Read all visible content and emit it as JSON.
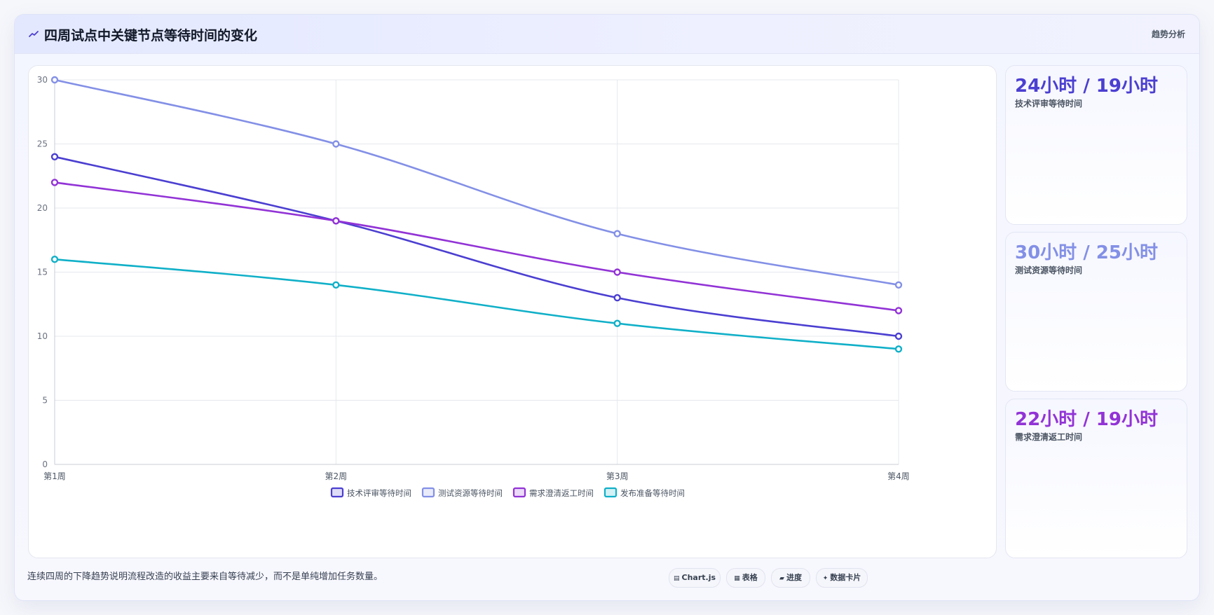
{
  "header": {
    "title": "四周试点中关键节点等待时间的变化",
    "badge": "趋势分析"
  },
  "colors": {
    "series": [
      "#4b3fd1",
      "#8390e6",
      "#9233d6",
      "#10b0c8"
    ]
  },
  "chart_data": {
    "type": "line",
    "x": [
      "第1周",
      "第2周",
      "第3周",
      "第4周"
    ],
    "ylim": [
      0,
      30
    ],
    "yticks": [
      0,
      5,
      10,
      15,
      20,
      25,
      30
    ],
    "grid": true,
    "legend_position": "bottom",
    "series": [
      {
        "name": "技术评审等待时间",
        "values": [
          24,
          19,
          13,
          10
        ]
      },
      {
        "name": "测试资源等待时间",
        "values": [
          30,
          25,
          18,
          14
        ]
      },
      {
        "name": "需求澄清返工时间",
        "values": [
          22,
          19,
          15,
          12
        ]
      },
      {
        "name": "发布准备等待时间",
        "values": [
          16,
          14,
          11,
          9
        ]
      }
    ]
  },
  "stats": [
    {
      "value": "24小时 / 19小时",
      "label": "技术评审等待时间",
      "color": "#4b3fd1"
    },
    {
      "value": "30小时 / 25小时",
      "label": "测试资源等待时间",
      "color": "#8390e6"
    },
    {
      "value": "22小时 / 19小时",
      "label": "需求澄清返工时间",
      "color": "#9233d6"
    }
  ],
  "footer": {
    "note": "连续四周的下降趋势说明流程改造的收益主要来自等待减少，而不是单纯增加任务数量。",
    "buttons": [
      {
        "icon": "chart-icon",
        "glyph": "▤",
        "label": "Chart.js"
      },
      {
        "icon": "table-icon",
        "glyph": "▦",
        "label": "表格"
      },
      {
        "icon": "progress-icon",
        "glyph": "▰",
        "label": "进度"
      },
      {
        "icon": "card-icon",
        "glyph": "✦",
        "label": "数据卡片"
      }
    ]
  }
}
